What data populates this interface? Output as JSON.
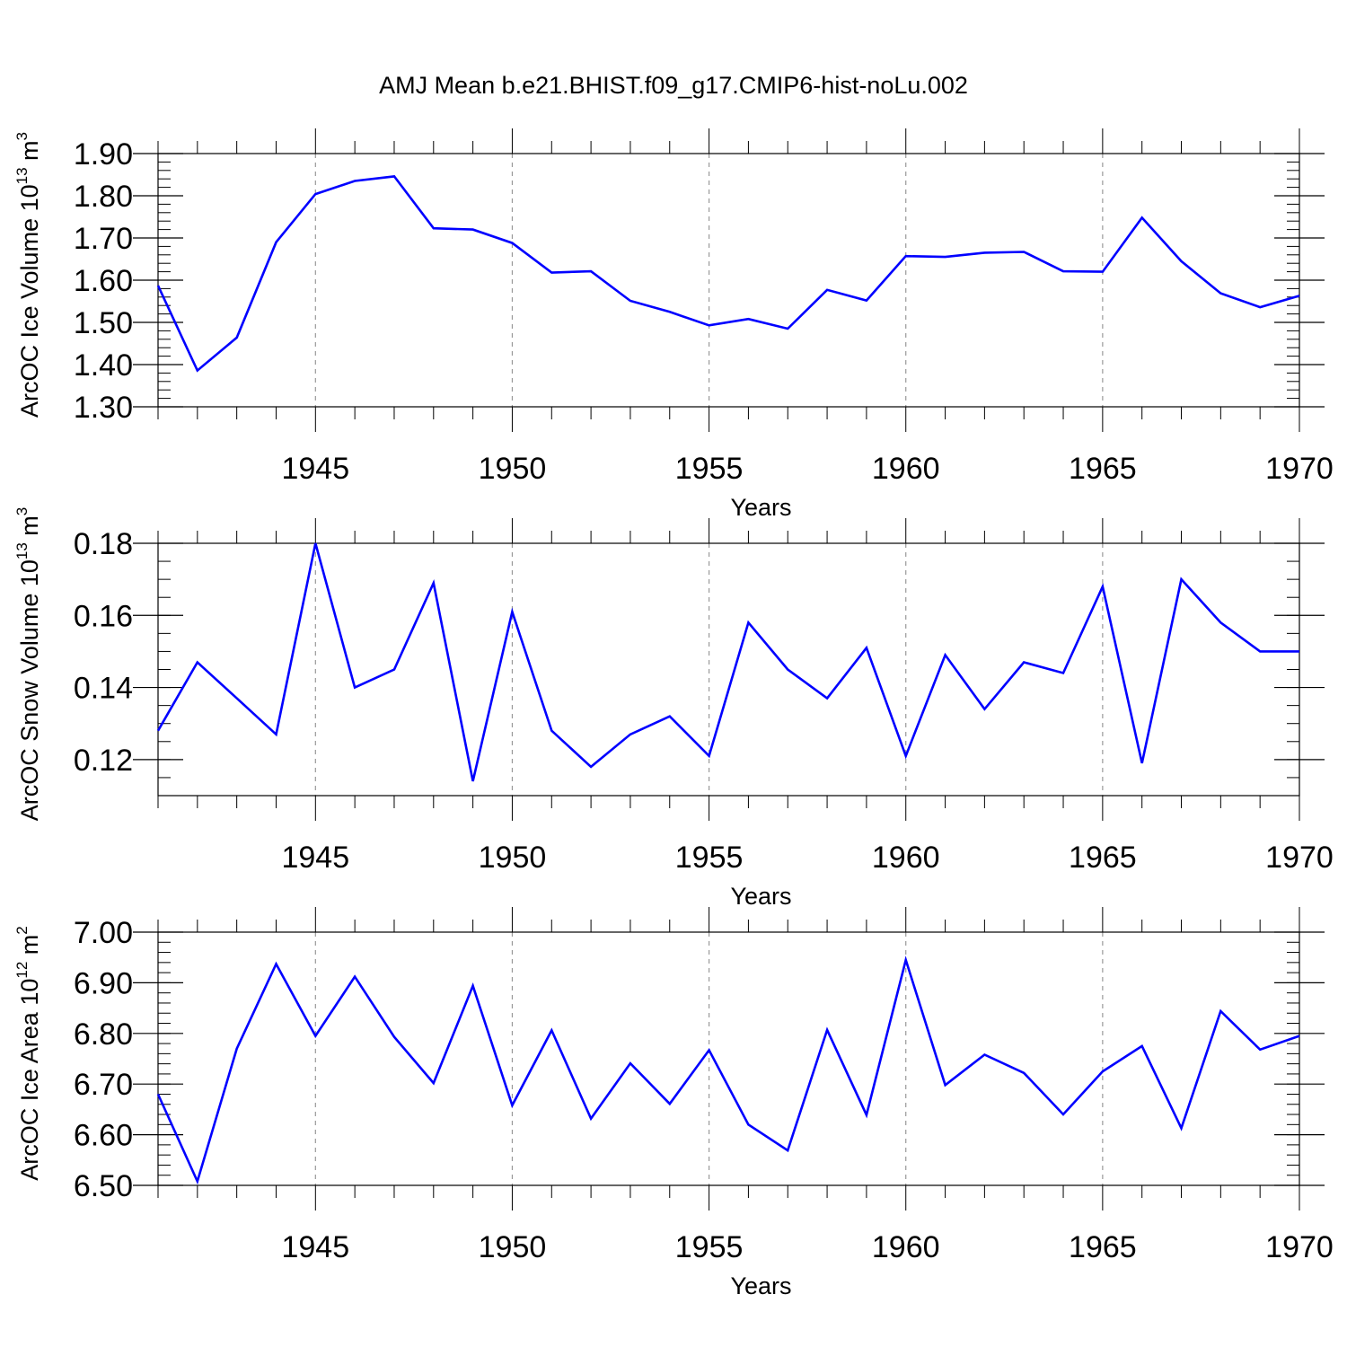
{
  "title": "AMJ Mean b.e21.BHIST.f09_g17.CMIP6-hist-noLu.002",
  "colors": {
    "line": "#0000ff",
    "axis": "#000000",
    "grid": "#999999",
    "background": "#ffffff"
  },
  "chart_data": [
    {
      "type": "line",
      "ylabel": {
        "text": "ArcOC Ice Volume 10",
        "sup": "13",
        "unit": " m",
        "unit_sup": "3"
      },
      "xlabel": "Years",
      "xlim": [
        1941,
        1970
      ],
      "ylim": [
        1.3,
        1.9
      ],
      "x_ticks": [
        1945,
        1950,
        1955,
        1960,
        1965,
        1970
      ],
      "x_tick_labels": [
        "1945",
        "1950",
        "1955",
        "1960",
        "1965",
        "1970"
      ],
      "y_ticks": [
        1.3,
        1.4,
        1.5,
        1.6,
        1.7,
        1.8,
        1.9
      ],
      "y_tick_labels": [
        "1.30",
        "1.40",
        "1.50",
        "1.60",
        "1.70",
        "1.80",
        "1.90"
      ],
      "grid": "vertical dashed at major x ticks",
      "series": [
        {
          "x": [
            1941,
            1942,
            1943,
            1944,
            1945,
            1946,
            1947,
            1948,
            1949,
            1950,
            1951,
            1952,
            1953,
            1954,
            1955,
            1956,
            1957,
            1958,
            1959,
            1960,
            1961,
            1962,
            1963,
            1964,
            1965,
            1966,
            1967,
            1968,
            1969,
            1970
          ],
          "values": [
            1.587,
            1.386,
            1.464,
            1.69,
            1.804,
            1.835,
            1.846,
            1.723,
            1.72,
            1.688,
            1.618,
            1.621,
            1.551,
            1.525,
            1.493,
            1.508,
            1.485,
            1.577,
            1.552,
            1.657,
            1.655,
            1.665,
            1.667,
            1.621,
            1.62,
            1.748,
            1.645,
            1.569,
            1.536,
            1.563
          ]
        }
      ]
    },
    {
      "type": "line",
      "ylabel": {
        "text": "ArcOC Snow Volume 10",
        "sup": "13",
        "unit": " m",
        "unit_sup": "3"
      },
      "xlabel": "Years",
      "xlim": [
        1941,
        1970
      ],
      "ylim": [
        0.11,
        0.18
      ],
      "x_ticks": [
        1945,
        1950,
        1955,
        1960,
        1965,
        1970
      ],
      "x_tick_labels": [
        "1945",
        "1950",
        "1955",
        "1960",
        "1965",
        "1970"
      ],
      "y_ticks": [
        0.12,
        0.14,
        0.16,
        0.18
      ],
      "y_tick_labels": [
        "0.12",
        "0.14",
        "0.16",
        "0.18"
      ],
      "grid": "vertical dashed at major x ticks",
      "series": [
        {
          "x": [
            1941,
            1942,
            1943,
            1944,
            1945,
            1946,
            1947,
            1948,
            1949,
            1950,
            1951,
            1952,
            1953,
            1954,
            1955,
            1956,
            1957,
            1958,
            1959,
            1960,
            1961,
            1962,
            1963,
            1964,
            1965,
            1966,
            1967,
            1968,
            1969,
            1970
          ],
          "values": [
            0.128,
            0.147,
            0.137,
            0.127,
            0.18,
            0.14,
            0.145,
            0.169,
            0.114,
            0.161,
            0.128,
            0.118,
            0.127,
            0.132,
            0.121,
            0.158,
            0.145,
            0.137,
            0.151,
            0.121,
            0.149,
            0.134,
            0.147,
            0.144,
            0.168,
            0.119,
            0.17,
            0.158,
            0.15,
            0.15
          ]
        }
      ]
    },
    {
      "type": "line",
      "ylabel": {
        "text": "ArcOC Ice Area 10",
        "sup": "12",
        "unit": " m",
        "unit_sup": "2"
      },
      "xlabel": "Years",
      "xlim": [
        1941,
        1970
      ],
      "ylim": [
        6.5,
        7.0
      ],
      "x_ticks": [
        1945,
        1950,
        1955,
        1960,
        1965,
        1970
      ],
      "x_tick_labels": [
        "1945",
        "1950",
        "1955",
        "1960",
        "1965",
        "1970"
      ],
      "y_ticks": [
        6.5,
        6.6,
        6.7,
        6.8,
        6.9,
        7.0
      ],
      "y_tick_labels": [
        "6.50",
        "6.60",
        "6.70",
        "6.80",
        "6.90",
        "7.00"
      ],
      "grid": "vertical dashed at major x ticks",
      "series": [
        {
          "x": [
            1941,
            1942,
            1943,
            1944,
            1945,
            1946,
            1947,
            1948,
            1949,
            1950,
            1951,
            1952,
            1953,
            1954,
            1955,
            1956,
            1957,
            1958,
            1959,
            1960,
            1961,
            1962,
            1963,
            1964,
            1965,
            1966,
            1967,
            1968,
            1969,
            1970
          ],
          "values": [
            6.68,
            6.508,
            6.77,
            6.937,
            6.795,
            6.912,
            6.793,
            6.702,
            6.894,
            6.658,
            6.806,
            6.632,
            6.741,
            6.661,
            6.767,
            6.62,
            6.569,
            6.807,
            6.639,
            6.945,
            6.698,
            6.758,
            6.722,
            6.64,
            6.725,
            6.775,
            6.613,
            6.844,
            6.768,
            6.795
          ]
        }
      ]
    }
  ]
}
